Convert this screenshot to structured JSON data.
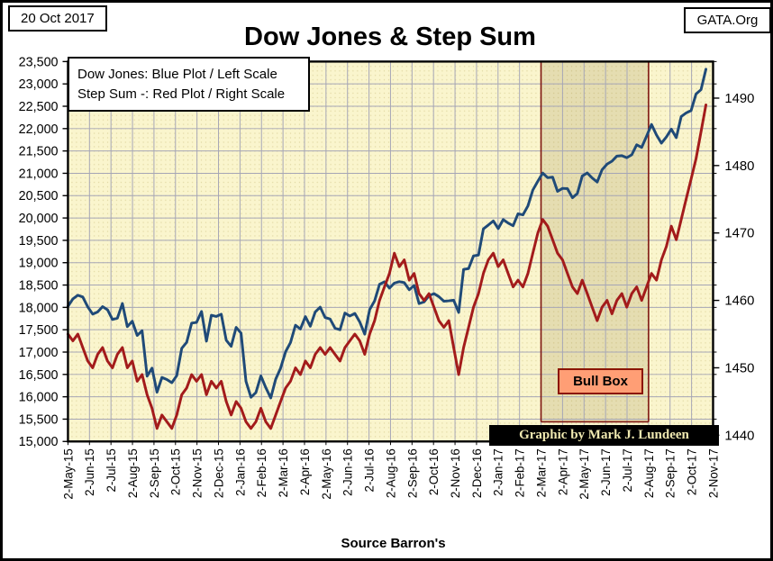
{
  "header": {
    "date_box": "20 Oct 2017",
    "site_box": "GATA.Org",
    "title": "Dow Jones & Step Sum"
  },
  "legend": {
    "line1": "Dow Jones: Blue Plot / Left Scale",
    "line2": "Step Sum -: Red Plot / Right Scale"
  },
  "annotations": {
    "bull_box_label": "Bull Box",
    "watermark": "Graphic by Mark J. Lundeen",
    "source": "Source Barron's"
  },
  "colors": {
    "dow_blue": "#1F4A78",
    "step_sum_red": "#A31B1B",
    "plot_background": "#FAF5CD",
    "plot_dots": "#E2D9A4",
    "gridline": "#A6A6B6",
    "bull_box_border": "#7E1510",
    "bull_box_fill": "rgba(125,100,30,0.16)",
    "bull_label_bg": "#FF9E75",
    "watermark_text": "#EFE8B0",
    "frame_border": "#000000"
  },
  "chart_data": {
    "type": "line",
    "title": "Dow Jones & Step Sum",
    "x_frequency": "weekly",
    "x_start": "2-May-15",
    "x_end": "20-Oct-17",
    "grid": true,
    "legend_position": "top-left",
    "x_tick_labels": [
      "2-May-15",
      "2-Jun-15",
      "2-Jul-15",
      "2-Aug-15",
      "2-Sep-15",
      "2-Oct-15",
      "2-Nov-15",
      "2-Dec-15",
      "2-Jan-16",
      "2-Feb-16",
      "2-Mar-16",
      "2-Apr-16",
      "2-May-16",
      "2-Jun-16",
      "2-Jul-16",
      "2-Aug-16",
      "2-Sep-16",
      "2-Oct-16",
      "2-Nov-16",
      "2-Dec-16",
      "2-Jan-17",
      "2-Feb-17",
      "2-Mar-17",
      "2-Apr-17",
      "2-May-17",
      "2-Jun-17",
      "2-Jul-17",
      "2-Aug-17",
      "2-Sep-17",
      "2-Oct-17",
      "2-Nov-17"
    ],
    "y_left": {
      "label": "Dow Jones",
      "min": 15000,
      "max": 23500,
      "tick_step": 500,
      "tick_labels_top_to_bottom": [
        "23,500",
        "23,000",
        "22,500",
        "22,000",
        "21,500",
        "21,000",
        "20,500",
        "20,000",
        "19,500",
        "19,000",
        "18,500",
        "18,000",
        "17,500",
        "17,000",
        "16,500",
        "16,000",
        "15,500",
        "15,000"
      ]
    },
    "y_right": {
      "label": "Step Sum",
      "min": 1440,
      "max": 1490,
      "tick_step": 10,
      "tick_labels_top_to_bottom": [
        "1490",
        "1480",
        "1470",
        "1460",
        "1450",
        "1440"
      ]
    },
    "bull_box": {
      "label": "Bull Box",
      "x_start_label": "2-Mar-17",
      "x_end_label": "2-Aug-17"
    },
    "series": [
      {
        "name": "Dow Jones",
        "axis": "left",
        "color": "#1F4A78",
        "values": [
          18024,
          18191,
          18272,
          18232,
          18011,
          17849,
          17899,
          18016,
          17947,
          17730,
          17760,
          18086,
          17569,
          17690,
          17373,
          17477,
          16460,
          16643,
          16102,
          16433,
          16385,
          16315,
          16472,
          17084,
          17216,
          17647,
          17664,
          17910,
          17245,
          17824,
          17798,
          17848,
          17265,
          17128,
          17552,
          17425,
          16346,
          15988,
          16094,
          16466,
          16205,
          15974,
          16392,
          16640,
          17007,
          17213,
          17602,
          17516,
          17793,
          17577,
          17897,
          18004,
          17774,
          17740,
          17535,
          17500,
          17873,
          17807,
          17865,
          17675,
          17400,
          17949,
          18147,
          18516,
          18571,
          18432,
          18543,
          18576,
          18553,
          18395,
          18492,
          18085,
          18123,
          18261,
          18308,
          18240,
          18138,
          18146,
          18161,
          17888,
          18848,
          18868,
          19152,
          19170,
          19757,
          19843,
          19934,
          19763,
          19964,
          19886,
          19827,
          20094,
          20071,
          20269,
          20624,
          20822,
          21006,
          20903,
          20915,
          20597,
          20663,
          20656,
          20453,
          20548,
          20940,
          21007,
          20896,
          20805,
          21080,
          21206,
          21272,
          21384,
          21395,
          21350,
          21414,
          21638,
          21580,
          21830,
          22093,
          21858,
          21675,
          21814,
          21988,
          21798,
          22268,
          22350,
          22405,
          22774,
          22872,
          23329
        ]
      },
      {
        "name": "Step Sum",
        "axis": "right",
        "color": "#A31B1B",
        "values": [
          1455,
          1454,
          1455,
          1453,
          1451,
          1450,
          1452,
          1453,
          1451,
          1450,
          1452,
          1453,
          1450,
          1451,
          1448,
          1449,
          1446,
          1444,
          1441,
          1443,
          1442,
          1441,
          1443,
          1446,
          1447,
          1449,
          1448,
          1449,
          1446,
          1448,
          1447,
          1448,
          1445,
          1443,
          1445,
          1444,
          1442,
          1441,
          1442,
          1444,
          1442,
          1441,
          1443,
          1445,
          1447,
          1448,
          1450,
          1449,
          1451,
          1450,
          1452,
          1453,
          1452,
          1453,
          1452,
          1451,
          1453,
          1454,
          1455,
          1454,
          1452,
          1455,
          1457,
          1460,
          1462,
          1464,
          1467,
          1465,
          1466,
          1463,
          1464,
          1461,
          1460,
          1461,
          1459,
          1457,
          1456,
          1457,
          1453,
          1449,
          1453,
          1456,
          1459,
          1461,
          1464,
          1466,
          1467,
          1465,
          1466,
          1464,
          1462,
          1463,
          1462,
          1464,
          1467,
          1470,
          1472,
          1471,
          1469,
          1467,
          1466,
          1464,
          1462,
          1461,
          1463,
          1461,
          1459,
          1457,
          1459,
          1460,
          1458,
          1460,
          1461,
          1459,
          1461,
          1462,
          1460,
          1462,
          1464,
          1463,
          1466,
          1468,
          1471,
          1469,
          1472,
          1475,
          1478,
          1481,
          1485,
          1489
        ]
      }
    ]
  }
}
